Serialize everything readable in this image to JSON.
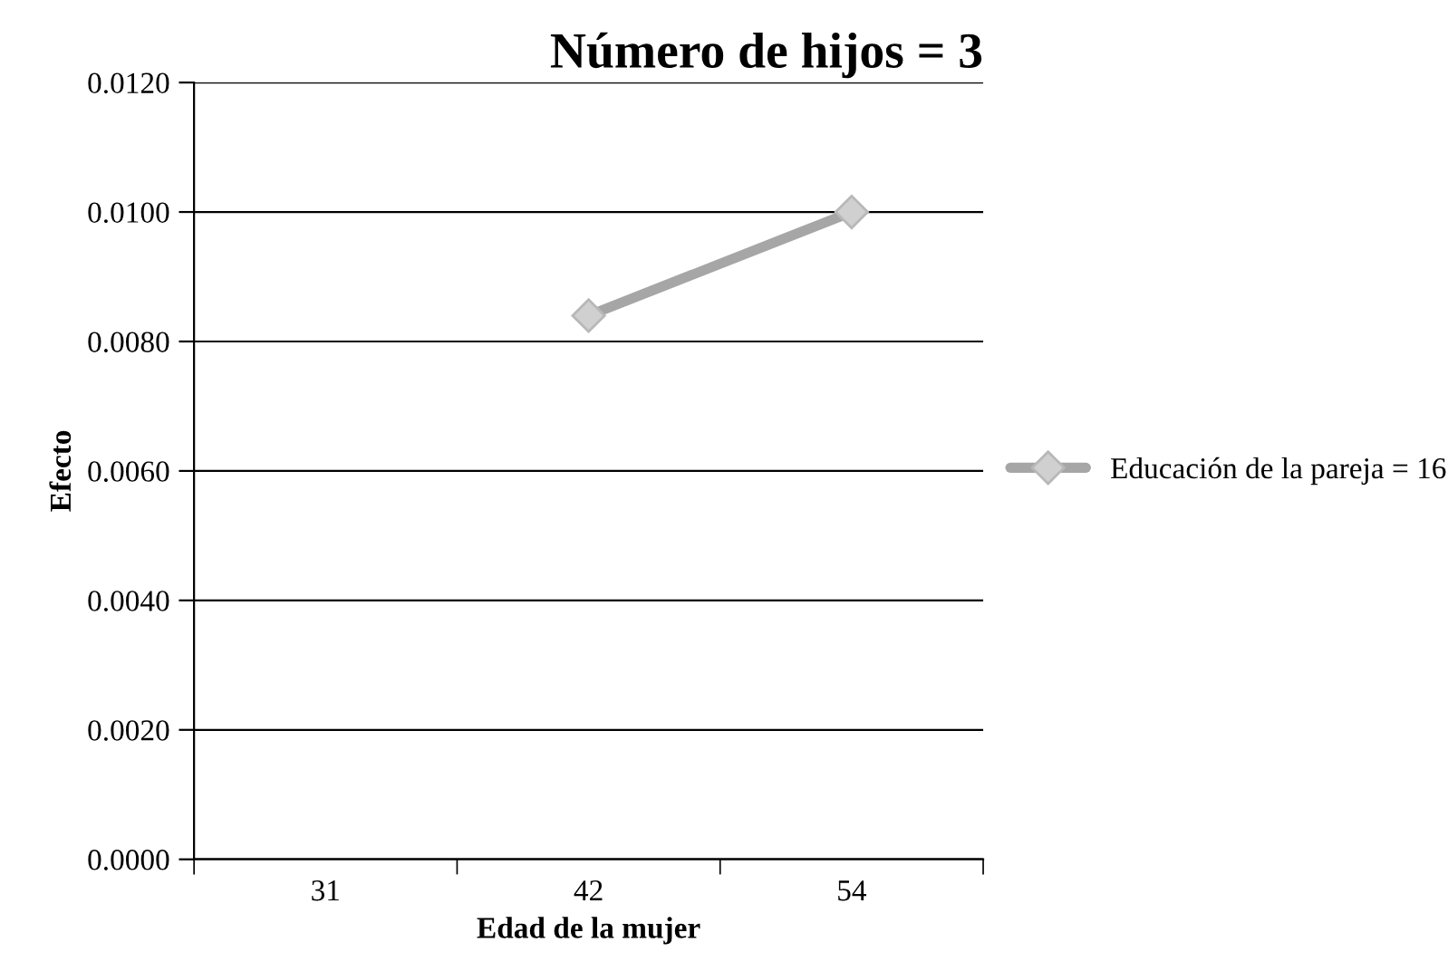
{
  "chart_data": {
    "type": "line",
    "title": "Número de hijos = 3",
    "xlabel": "Edad de la mujer",
    "ylabel": "Efecto",
    "categories": [
      "31",
      "42",
      "54"
    ],
    "series": [
      {
        "name": "Educación de la pareja = 16",
        "color": "#a6a6a6",
        "values": [
          null,
          0.0084,
          0.01
        ]
      }
    ],
    "ylim": [
      0,
      0.012
    ],
    "yticks": [
      {
        "value": 0,
        "label": "0.0000"
      },
      {
        "value": 0.002,
        "label": "0.0020"
      },
      {
        "value": 0.004,
        "label": "0.0040"
      },
      {
        "value": 0.006,
        "label": "0.0060"
      },
      {
        "value": 0.008,
        "label": "0.0080"
      },
      {
        "value": 0.01,
        "label": "0.0100"
      },
      {
        "value": 0.012,
        "label": "0.0120"
      }
    ],
    "grid": "y",
    "legend": "right",
    "marker": "diamond",
    "line_style": "solid"
  }
}
